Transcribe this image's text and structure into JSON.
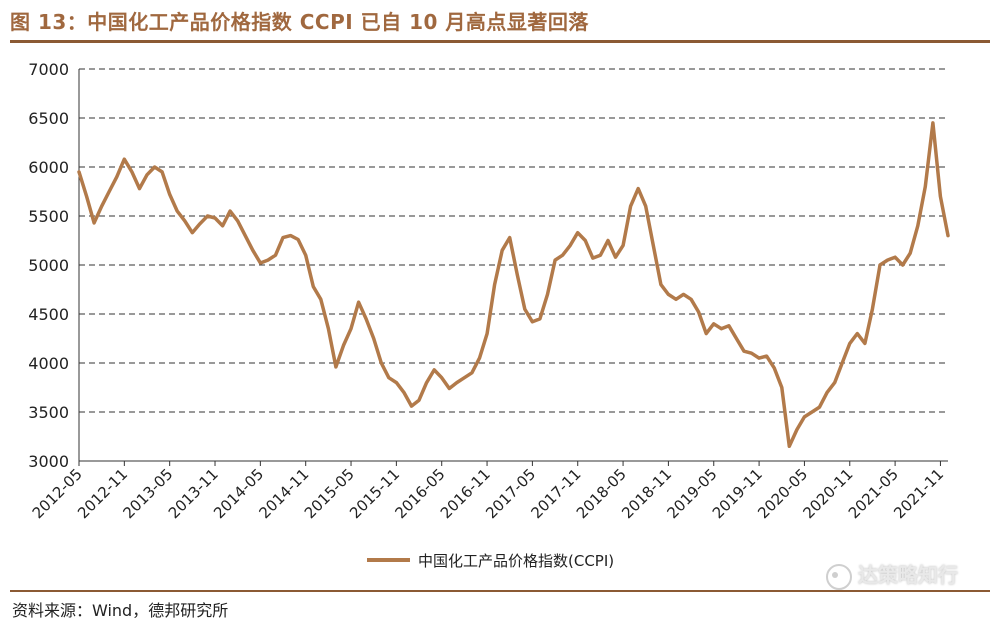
{
  "title": "图 13：中国化工产品价格指数 CCPI 已自 10 月高点显著回落",
  "source": "资料来源：Wind，德邦研究所",
  "watermark": "达策略知行",
  "colors": {
    "series": "#b27a4a",
    "accent": "#a0683f"
  },
  "chart_data": {
    "type": "line",
    "title": "",
    "xlabel": "",
    "ylabel": "",
    "ylim": [
      3000,
      7000
    ],
    "yticks": [
      3000,
      3500,
      4000,
      4500,
      5000,
      5500,
      6000,
      6500,
      7000
    ],
    "xlim": [
      "2012-05",
      "2021-12"
    ],
    "xticks": [
      "2012-05",
      "2012-11",
      "2013-05",
      "2013-11",
      "2014-05",
      "2014-11",
      "2015-05",
      "2015-11",
      "2016-05",
      "2016-11",
      "2017-05",
      "2017-11",
      "2018-05",
      "2018-11",
      "2019-05",
      "2019-11",
      "2020-05",
      "2020-11",
      "2021-05",
      "2021-11"
    ],
    "grid": "horizontal dashed",
    "legend_position": "bottom-center",
    "series": [
      {
        "name": "中国化工产品价格指数(CCPI)",
        "color": "#b27a4a",
        "points": [
          [
            "2012-05",
            5950
          ],
          [
            "2012-06",
            5700
          ],
          [
            "2012-07",
            5430
          ],
          [
            "2012-08",
            5600
          ],
          [
            "2012-09",
            5750
          ],
          [
            "2012-10",
            5900
          ],
          [
            "2012-11",
            6080
          ],
          [
            "2012-12",
            5950
          ],
          [
            "2013-01",
            5780
          ],
          [
            "2013-02",
            5920
          ],
          [
            "2013-03",
            6000
          ],
          [
            "2013-04",
            5950
          ],
          [
            "2013-05",
            5720
          ],
          [
            "2013-06",
            5550
          ],
          [
            "2013-07",
            5450
          ],
          [
            "2013-08",
            5330
          ],
          [
            "2013-09",
            5420
          ],
          [
            "2013-10",
            5500
          ],
          [
            "2013-11",
            5480
          ],
          [
            "2013-12",
            5400
          ],
          [
            "2014-01",
            5550
          ],
          [
            "2014-02",
            5450
          ],
          [
            "2014-03",
            5300
          ],
          [
            "2014-04",
            5150
          ],
          [
            "2014-05",
            5020
          ],
          [
            "2014-06",
            5050
          ],
          [
            "2014-07",
            5100
          ],
          [
            "2014-08",
            5280
          ],
          [
            "2014-09",
            5300
          ],
          [
            "2014-10",
            5260
          ],
          [
            "2014-11",
            5100
          ],
          [
            "2014-12",
            4780
          ],
          [
            "2015-01",
            4650
          ],
          [
            "2015-02",
            4350
          ],
          [
            "2015-03",
            3960
          ],
          [
            "2015-04",
            4180
          ],
          [
            "2015-05",
            4350
          ],
          [
            "2015-06",
            4620
          ],
          [
            "2015-07",
            4450
          ],
          [
            "2015-08",
            4250
          ],
          [
            "2015-09",
            4000
          ],
          [
            "2015-10",
            3850
          ],
          [
            "2015-11",
            3800
          ],
          [
            "2015-12",
            3700
          ],
          [
            "2016-01",
            3560
          ],
          [
            "2016-02",
            3620
          ],
          [
            "2016-03",
            3800
          ],
          [
            "2016-04",
            3930
          ],
          [
            "2016-05",
            3850
          ],
          [
            "2016-06",
            3740
          ],
          [
            "2016-07",
            3800
          ],
          [
            "2016-08",
            3850
          ],
          [
            "2016-09",
            3900
          ],
          [
            "2016-10",
            4050
          ],
          [
            "2016-11",
            4300
          ],
          [
            "2016-12",
            4800
          ],
          [
            "2017-01",
            5150
          ],
          [
            "2017-02",
            5280
          ],
          [
            "2017-03",
            4900
          ],
          [
            "2017-04",
            4550
          ],
          [
            "2017-05",
            4420
          ],
          [
            "2017-06",
            4450
          ],
          [
            "2017-07",
            4700
          ],
          [
            "2017-08",
            5050
          ],
          [
            "2017-09",
            5100
          ],
          [
            "2017-10",
            5200
          ],
          [
            "2017-11",
            5330
          ],
          [
            "2017-12",
            5250
          ],
          [
            "2018-01",
            5070
          ],
          [
            "2018-02",
            5100
          ],
          [
            "2018-03",
            5250
          ],
          [
            "2018-04",
            5080
          ],
          [
            "2018-05",
            5200
          ],
          [
            "2018-06",
            5600
          ],
          [
            "2018-07",
            5780
          ],
          [
            "2018-08",
            5600
          ],
          [
            "2018-09",
            5200
          ],
          [
            "2018-10",
            4800
          ],
          [
            "2018-11",
            4700
          ],
          [
            "2018-12",
            4650
          ],
          [
            "2019-01",
            4700
          ],
          [
            "2019-02",
            4650
          ],
          [
            "2019-03",
            4520
          ],
          [
            "2019-04",
            4300
          ],
          [
            "2019-05",
            4400
          ],
          [
            "2019-06",
            4350
          ],
          [
            "2019-07",
            4380
          ],
          [
            "2019-08",
            4250
          ],
          [
            "2019-09",
            4120
          ],
          [
            "2019-10",
            4100
          ],
          [
            "2019-11",
            4050
          ],
          [
            "2019-12",
            4070
          ],
          [
            "2020-01",
            3950
          ],
          [
            "2020-02",
            3750
          ],
          [
            "2020-03",
            3150
          ],
          [
            "2020-04",
            3320
          ],
          [
            "2020-05",
            3450
          ],
          [
            "2020-06",
            3500
          ],
          [
            "2020-07",
            3550
          ],
          [
            "2020-08",
            3700
          ],
          [
            "2020-09",
            3800
          ],
          [
            "2020-10",
            4000
          ],
          [
            "2020-11",
            4200
          ],
          [
            "2020-12",
            4300
          ],
          [
            "2021-01",
            4200
          ],
          [
            "2021-02",
            4550
          ],
          [
            "2021-03",
            5000
          ],
          [
            "2021-04",
            5050
          ],
          [
            "2021-05",
            5080
          ],
          [
            "2021-06",
            5000
          ],
          [
            "2021-07",
            5120
          ],
          [
            "2021-08",
            5400
          ],
          [
            "2021-09",
            5800
          ],
          [
            "2021-10",
            6450
          ],
          [
            "2021-11",
            5700
          ],
          [
            "2021-12",
            5300
          ]
        ]
      }
    ]
  }
}
